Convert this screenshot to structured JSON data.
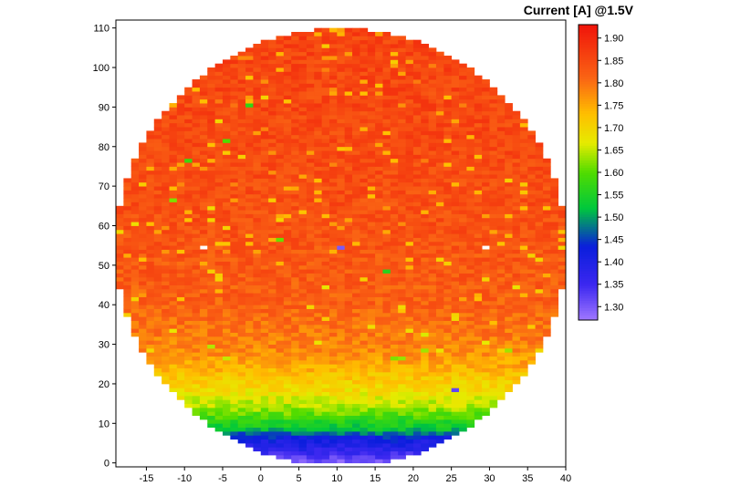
{
  "chart_data": {
    "type": "heatmap",
    "title": "Current [A] @1.5V",
    "xlabel": "",
    "ylabel": "",
    "xlim": [
      -19,
      40
    ],
    "ylim": [
      -1,
      112
    ],
    "x_ticks": [
      -15,
      -10,
      -5,
      0,
      5,
      10,
      15,
      20,
      25,
      30,
      35,
      40
    ],
    "y_ticks": [
      0,
      10,
      20,
      30,
      40,
      50,
      60,
      70,
      80,
      90,
      100,
      110
    ],
    "colorbar": {
      "min": 1.27,
      "max": 1.93,
      "ticks": [
        "1.90",
        "1.85",
        "1.80",
        "1.75",
        "1.70",
        "1.65",
        "1.60",
        "1.55",
        "1.50",
        "1.45",
        "1.40",
        "1.35",
        "1.30"
      ]
    },
    "wafer": {
      "center": [
        10.5,
        54.5
      ],
      "radius_x": 29.5,
      "radius_y": 55.5,
      "cell_width": 1,
      "cell_height": 1
    },
    "value_profile": [
      {
        "y": 0,
        "value": 1.3
      },
      {
        "y": 3,
        "value": 1.38
      },
      {
        "y": 6,
        "value": 1.43
      },
      {
        "y": 8,
        "value": 1.52
      },
      {
        "y": 10,
        "value": 1.56
      },
      {
        "y": 13,
        "value": 1.63
      },
      {
        "y": 17,
        "value": 1.68
      },
      {
        "y": 22,
        "value": 1.73
      },
      {
        "y": 28,
        "value": 1.78
      },
      {
        "y": 40,
        "value": 1.82
      },
      {
        "y": 60,
        "value": 1.84
      },
      {
        "y": 80,
        "value": 1.85
      },
      {
        "y": 111,
        "value": 1.86
      }
    ],
    "outliers": [
      {
        "x": 10,
        "y": 54,
        "value": 1.3
      },
      {
        "x": 25,
        "y": 18,
        "value": 1.32
      },
      {
        "x": 16,
        "y": 48,
        "value": 1.56
      },
      {
        "x": -2,
        "y": 90,
        "value": 1.57
      },
      {
        "x": -10,
        "y": 76,
        "value": 1.58
      },
      {
        "x": -5,
        "y": 81,
        "value": 1.6
      },
      {
        "x": -12,
        "y": 66,
        "value": 1.62
      },
      {
        "x": 2,
        "y": 56,
        "value": 1.61
      }
    ],
    "missing_cells": [
      {
        "x": -8,
        "y": 54
      },
      {
        "x": 29,
        "y": 54
      }
    ]
  }
}
